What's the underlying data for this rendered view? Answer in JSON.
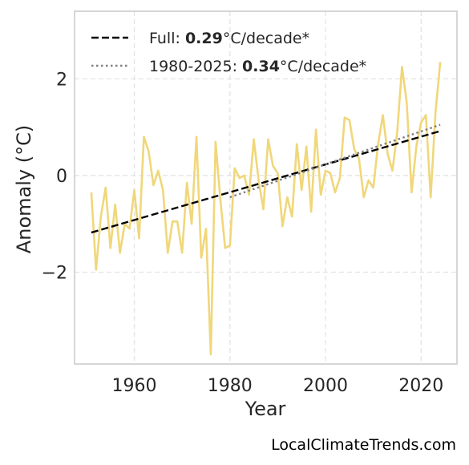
{
  "chart_data": {
    "type": "line",
    "xlabel": "Year",
    "ylabel": "Anomaly (°C)",
    "xlim": [
      1947.5,
      2027.5
    ],
    "ylim": [
      -3.9,
      3.4
    ],
    "xticks": [
      1960,
      1980,
      2000,
      2020
    ],
    "yticks": [
      -2,
      0,
      2
    ],
    "ytick_labels": [
      "−2",
      "0",
      "2"
    ],
    "grid": true,
    "legend_position": "top-left",
    "series": [
      {
        "style": "solid",
        "color": "#f0d77a",
        "x": [
          1951,
          1952,
          1953,
          1954,
          1955,
          1956,
          1957,
          1958,
          1959,
          1960,
          1961,
          1962,
          1963,
          1964,
          1965,
          1966,
          1967,
          1968,
          1969,
          1970,
          1971,
          1972,
          1973,
          1974,
          1975,
          1976,
          1977,
          1978,
          1979,
          1980,
          1981,
          1982,
          1983,
          1984,
          1985,
          1986,
          1987,
          1988,
          1989,
          1990,
          1991,
          1992,
          1993,
          1994,
          1995,
          1996,
          1997,
          1998,
          1999,
          2000,
          2001,
          2002,
          2003,
          2004,
          2005,
          2006,
          2007,
          2008,
          2009,
          2010,
          2011,
          2012,
          2013,
          2014,
          2015,
          2016,
          2017,
          2018,
          2019,
          2020,
          2021,
          2022,
          2023,
          2024
        ],
        "values": [
          -0.35,
          -1.95,
          -0.85,
          -0.25,
          -1.5,
          -0.6,
          -1.6,
          -1.0,
          -1.1,
          -0.3,
          -1.3,
          0.8,
          0.5,
          -0.2,
          0.1,
          -0.3,
          -1.6,
          -0.95,
          -0.95,
          -1.6,
          -0.15,
          -1.0,
          0.8,
          -1.7,
          -1.1,
          -3.7,
          0.7,
          -0.5,
          -1.5,
          -1.45,
          0.15,
          -0.05,
          0.0,
          -0.4,
          0.75,
          -0.1,
          -0.7,
          0.75,
          0.2,
          0.05,
          -1.05,
          -0.45,
          -0.85,
          0.65,
          -0.3,
          0.6,
          -0.75,
          0.95,
          -0.4,
          0.1,
          0.05,
          -0.35,
          -0.05,
          1.2,
          1.15,
          0.55,
          0.35,
          -0.45,
          -0.1,
          -0.25,
          0.65,
          1.25,
          0.45,
          0.1,
          0.9,
          2.25,
          1.5,
          -0.35,
          0.6,
          1.1,
          1.25,
          -0.45,
          1.3,
          2.35
        ]
      },
      {
        "name": "Full",
        "rate_label": "0.29",
        "unit_label": "°C/decade*",
        "style": "dashed",
        "color": "#000000",
        "x": [
          1951,
          2024
        ],
        "values": [
          -1.18,
          0.92
        ]
      },
      {
        "name": "1980-2025",
        "rate_label": "0.34",
        "unit_label": "°C/decade*",
        "style": "dotted",
        "color": "#808080",
        "x": [
          1980,
          2024
        ],
        "values": [
          -0.45,
          1.05
        ]
      }
    ]
  },
  "credit": "LocalClimateTrends.com"
}
